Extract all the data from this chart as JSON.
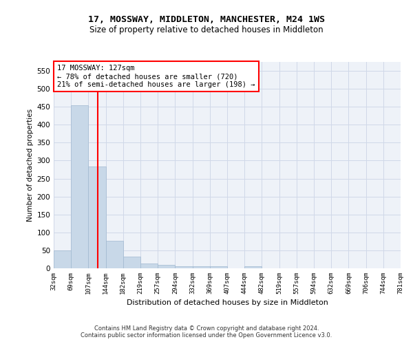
{
  "title": "17, MOSSWAY, MIDDLETON, MANCHESTER, M24 1WS",
  "subtitle": "Size of property relative to detached houses in Middleton",
  "xlabel": "Distribution of detached houses by size in Middleton",
  "ylabel": "Number of detached properties",
  "bins": [
    "32sqm",
    "69sqm",
    "107sqm",
    "144sqm",
    "182sqm",
    "219sqm",
    "257sqm",
    "294sqm",
    "332sqm",
    "369sqm",
    "407sqm",
    "444sqm",
    "482sqm",
    "519sqm",
    "557sqm",
    "594sqm",
    "632sqm",
    "669sqm",
    "706sqm",
    "744sqm",
    "781sqm"
  ],
  "bar_values": [
    50,
    455,
    283,
    77,
    32,
    14,
    10,
    5,
    5,
    5,
    0,
    5,
    0,
    0,
    0,
    0,
    0,
    0,
    0,
    0
  ],
  "bar_color": "#c8d8e8",
  "bar_edge_color": "#a0b8d0",
  "red_line_x": 2.78,
  "annotation_line1": "17 MOSSWAY: 127sqm",
  "annotation_line2": "← 78% of detached houses are smaller (720)",
  "annotation_line3": "21% of semi-detached houses are larger (198) →",
  "ylim": [
    0,
    575
  ],
  "yticks": [
    0,
    50,
    100,
    150,
    200,
    250,
    300,
    350,
    400,
    450,
    500,
    550
  ],
  "grid_color": "#d0d8e8",
  "bg_color": "#eef2f8",
  "footer_line1": "Contains HM Land Registry data © Crown copyright and database right 2024.",
  "footer_line2": "Contains public sector information licensed under the Open Government Licence v3.0."
}
